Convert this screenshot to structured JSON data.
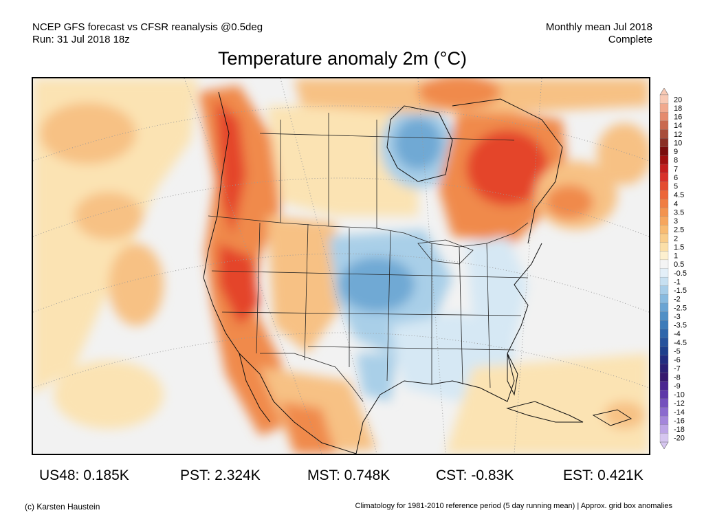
{
  "header": {
    "left_line1": "NCEP GFS forecast vs CFSR reanalysis @0.5deg",
    "left_line2": "Run: 31 Jul 2018 18z",
    "right_line1": "Monthly mean Jul 2018",
    "right_line2": "Complete"
  },
  "title": "Temperature anomaly 2m (°C)",
  "map": {
    "description_colors": {
      "warm_strong": "#e4452a",
      "warm_mid": "#f08a4b",
      "warm_light": "#f7c184",
      "warm_pale": "#fbe3b3",
      "neutral": "#f2f2f2",
      "cool_pale": "#d6e8f4",
      "cool_light": "#a9cfe8",
      "cool_mid": "#6fa9d4",
      "border": "#000000"
    }
  },
  "colorbar": {
    "labels": [
      "20",
      "18",
      "16",
      "14",
      "12",
      "10",
      "9",
      "8",
      "7",
      "6",
      "5",
      "4.5",
      "4",
      "3.5",
      "3",
      "2.5",
      "2",
      "1.5",
      "1",
      "0.5",
      "-0.5",
      "-1",
      "-1.5",
      "-2",
      "-2.5",
      "-3",
      "-3.5",
      "-4",
      "-4.5",
      "-5",
      "-6",
      "-7",
      "-8",
      "-9",
      "-10",
      "-12",
      "-14",
      "-16",
      "-18",
      "-20"
    ],
    "colors": [
      "#f8c9b4",
      "#f1a98e",
      "#e58a6d",
      "#c9694f",
      "#a84d3a",
      "#8a2f25",
      "#7a0d0d",
      "#a01010",
      "#c41e1e",
      "#d8312a",
      "#e44c30",
      "#ec6638",
      "#f07d42",
      "#f3934f",
      "#f6a65e",
      "#f8bb72",
      "#f9cd8a",
      "#fbdfa8",
      "#fdf0cf",
      "#f4f4f4",
      "#e3eff8",
      "#c7e0f1",
      "#a7cde8",
      "#88badf",
      "#6aa4d3",
      "#5190c6",
      "#3d7bb9",
      "#2f66ab",
      "#26529c",
      "#1e3f8c",
      "#222c80",
      "#2b1f75",
      "#36186e",
      "#4a2590",
      "#5d37a8",
      "#7450bd",
      "#8b6ace",
      "#a486db",
      "#bda5e6",
      "#d6c6f0"
    ]
  },
  "regions": [
    {
      "label": "US48: 0.185K"
    },
    {
      "label": "PST: 2.324K"
    },
    {
      "label": "MST: 0.748K"
    },
    {
      "label": "CST: -0.83K"
    },
    {
      "label": "EST: 0.421K"
    }
  ],
  "footer": {
    "credit": "(c) Karsten Haustein",
    "note": "Climatology for 1981-2010 reference period (5 day running mean) | Approx. grid box anomalies"
  }
}
